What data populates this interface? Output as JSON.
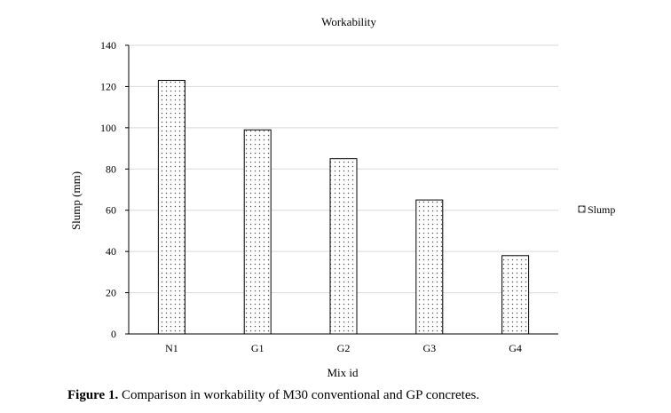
{
  "chart_data": {
    "type": "bar",
    "title": "Workability",
    "xlabel": "Mix id",
    "ylabel": "Slump (mm)",
    "categories": [
      "N1",
      "G1",
      "G2",
      "G3",
      "G4"
    ],
    "series": [
      {
        "name": "Slump",
        "values": [
          123,
          99,
          85,
          65,
          38
        ]
      }
    ],
    "ylim": [
      0,
      140
    ],
    "yticks": [
      0,
      20,
      40,
      60,
      80,
      100,
      120,
      140
    ],
    "grid": true,
    "legend": "right",
    "bar_pattern": "dotted",
    "colors": {
      "bar_fill": "#ffffff",
      "bar_stroke": "#000000",
      "dot": "#555555",
      "grid": "#d9d9d9",
      "axis": "#000000"
    }
  },
  "caption": {
    "label": "Figure 1.",
    "text": " Comparison in workability of M30 conventional and GP concretes."
  }
}
